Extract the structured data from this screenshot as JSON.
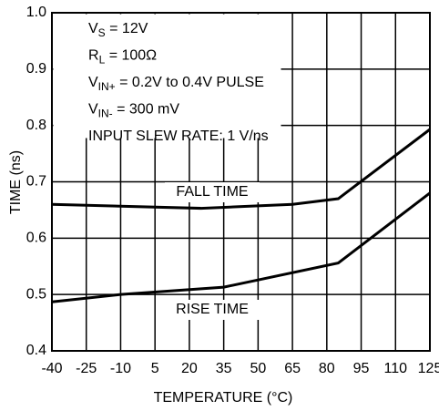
{
  "chart_data": {
    "type": "line",
    "xlabel": "TEMPERATURE (°C)",
    "ylabel": "TIME (ns)",
    "xlim": [
      -40,
      125
    ],
    "xticks": [
      -40,
      -25,
      -10,
      5,
      20,
      35,
      50,
      65,
      80,
      95,
      110,
      125
    ],
    "ylim": [
      0.4,
      1.0
    ],
    "yticks": [
      0.4,
      0.5,
      0.6,
      0.7,
      0.8,
      0.9,
      {
        "value": 1,
        "label": "1.0"
      }
    ],
    "grid": true,
    "annotations": [
      {
        "text": "V",
        "sub": "S",
        "after": " = 12V"
      },
      {
        "text": "R",
        "sub": "L",
        "after": " = 100Ω"
      },
      {
        "text": "V",
        "sub": "IN+",
        "after": " = 0.2V to 0.4V PULSE"
      },
      {
        "text": "V",
        "sub": "IN-",
        "after": " = 300 mV"
      },
      {
        "text": "INPUT SLEW RATE: 1 V/ns"
      }
    ],
    "series": [
      {
        "name": "FALL TIME",
        "color": "#000000",
        "x": [
          -40,
          25,
          65,
          85,
          125
        ],
        "values": [
          0.66,
          0.653,
          0.66,
          0.67,
          0.793
        ]
      },
      {
        "name": "RISE TIME",
        "color": "#000000",
        "x": [
          -40,
          -10,
          35,
          85,
          125
        ],
        "values": [
          0.487,
          0.5,
          0.513,
          0.556,
          0.68
        ]
      }
    ]
  }
}
